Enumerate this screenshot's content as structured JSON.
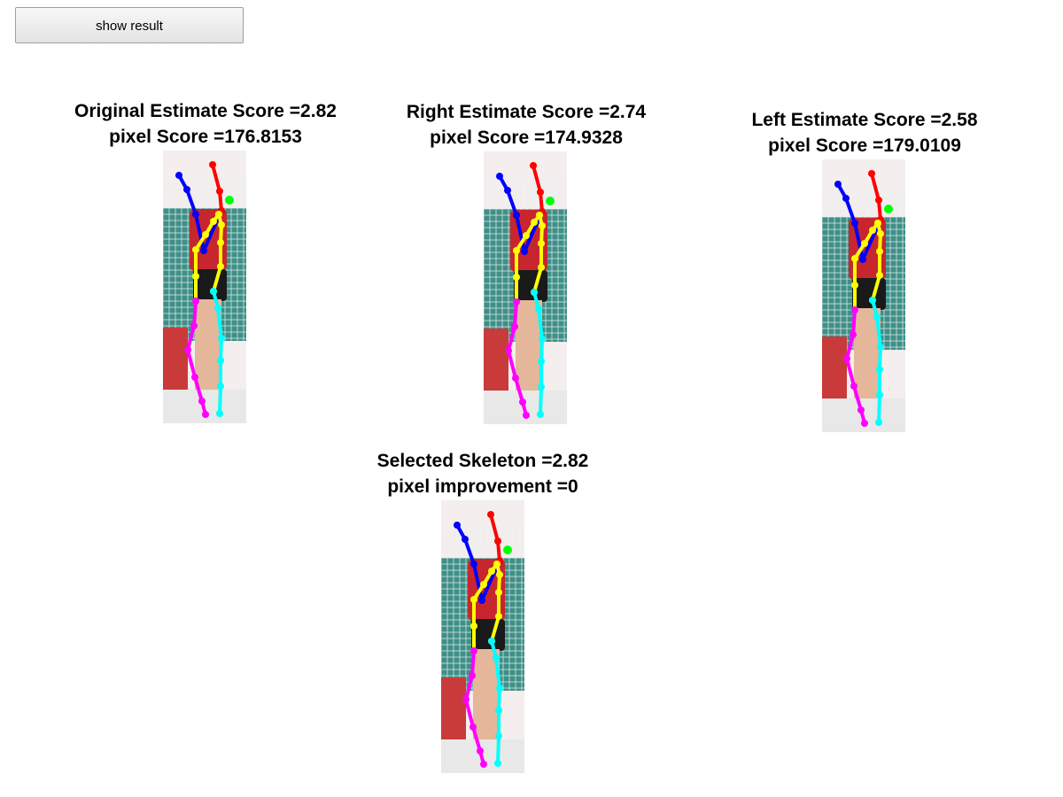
{
  "toolbar": {
    "show_result_label": "show result"
  },
  "panels": [
    {
      "line1": "Original Estimate Score =2.82",
      "line2": "pixel Score =176.8153"
    },
    {
      "line1": "Right Estimate Score =2.74",
      "line2": "pixel Score =174.9328"
    },
    {
      "line1": "Left Estimate Score =2.58",
      "line2": "pixel Score =179.0109"
    },
    {
      "line1": "Selected Skeleton =2.82",
      "line2": "pixel improvement =0"
    }
  ],
  "skeleton_colors": {
    "left_arm": "#0000ff",
    "right_arm": "#ff0000",
    "head": "#00ff00",
    "torso": "#ffff00",
    "left_leg": "#ff00ff",
    "right_leg": "#00ffff"
  }
}
